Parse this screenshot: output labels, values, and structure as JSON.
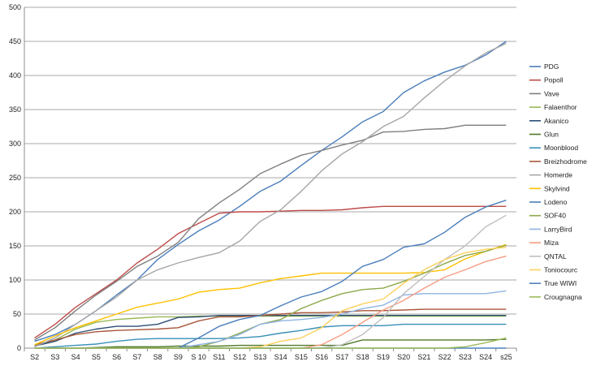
{
  "chart_data": {
    "type": "line",
    "title": "",
    "xlabel": "",
    "ylabel": "",
    "ylim": [
      0,
      500
    ],
    "yticks": [
      0,
      50,
      100,
      150,
      200,
      250,
      300,
      350,
      400,
      450,
      500
    ],
    "grid": "horizontal",
    "legend_position": "right",
    "categories": [
      "S2",
      "S3",
      "S4",
      "S5",
      "S6",
      "S7",
      "S8",
      "S9",
      "S 10",
      "S11",
      "S12",
      "S13",
      "S14",
      "S15",
      "S16",
      "S17",
      "S18",
      "S19",
      "S20",
      "S21",
      "S22",
      "S23",
      "S24",
      "s25"
    ],
    "series": [
      {
        "name": "PDG",
        "color": "#4a7ebb",
        "values": [
          10,
          20,
          35,
          55,
          78,
          100,
          130,
          152,
          172,
          188,
          208,
          230,
          245,
          268,
          290,
          310,
          332,
          347,
          375,
          392,
          405,
          415,
          430,
          450
        ]
      },
      {
        "name": "Popoll",
        "color": "#be4b48",
        "values": [
          15,
          35,
          60,
          80,
          100,
          125,
          145,
          168,
          183,
          198,
          200,
          200,
          201,
          202,
          202,
          203,
          206,
          208,
          208,
          208,
          208,
          208,
          208,
          208
        ]
      },
      {
        "name": "Vave",
        "color": "#7f7f7f",
        "values": [
          12,
          30,
          55,
          78,
          98,
          120,
          135,
          155,
          190,
          213,
          233,
          256,
          270,
          283,
          290,
          298,
          305,
          317,
          318,
          321,
          322,
          327,
          327,
          327
        ]
      },
      {
        "name": "Falaenthor",
        "color": "#98b954",
        "values": [
          3,
          12,
          28,
          38,
          42,
          44,
          46,
          46,
          47,
          47,
          47,
          47,
          47,
          47,
          47,
          47,
          47,
          47,
          47,
          47,
          47,
          47,
          47,
          47
        ]
      },
      {
        "name": "Akanico",
        "color": "#2c4d75",
        "values": [
          3,
          10,
          22,
          28,
          32,
          32,
          35,
          45,
          46,
          48,
          48,
          48,
          48,
          48,
          48,
          48,
          48,
          48,
          48,
          48,
          48,
          48,
          48,
          48
        ]
      },
      {
        "name": "Glun",
        "color": "#4f7a28",
        "values": [
          0,
          0,
          0,
          1,
          2,
          2,
          2,
          3,
          3,
          3,
          4,
          4,
          4,
          4,
          4,
          4,
          12,
          12,
          12,
          12,
          12,
          12,
          12,
          13
        ]
      },
      {
        "name": "Moonblood",
        "color": "#3a8fb7",
        "values": [
          0,
          2,
          4,
          6,
          10,
          13,
          14,
          14,
          14,
          14,
          15,
          17,
          22,
          26,
          31,
          33,
          33,
          33,
          35,
          35,
          35,
          35,
          35,
          35
        ]
      },
      {
        "name": "Breizhodrome",
        "color": "#a9573a",
        "values": [
          5,
          12,
          20,
          24,
          26,
          27,
          28,
          30,
          40,
          46,
          46,
          48,
          50,
          52,
          52,
          53,
          55,
          55,
          56,
          57,
          57,
          57,
          57,
          57
        ]
      },
      {
        "name": "Homerde",
        "color": "#a6a6a6",
        "values": [
          2,
          15,
          35,
          55,
          75,
          100,
          115,
          125,
          133,
          140,
          157,
          186,
          203,
          230,
          260,
          285,
          303,
          325,
          340,
          367,
          392,
          414,
          433,
          447
        ]
      },
      {
        "name": "Skylvind",
        "color": "#ffc000",
        "values": [
          5,
          18,
          30,
          40,
          50,
          60,
          66,
          72,
          82,
          86,
          88,
          96,
          102,
          106,
          110,
          110,
          110,
          110,
          110,
          111,
          115,
          131,
          142,
          152
        ]
      },
      {
        "name": "Lodeno",
        "color": "#4a7ebb",
        "values": [
          0,
          0,
          0,
          0,
          0,
          0,
          0,
          0,
          15,
          32,
          42,
          48,
          62,
          75,
          83,
          98,
          120,
          130,
          148,
          153,
          170,
          192,
          207,
          217
        ]
      },
      {
        "name": "SOF40",
        "color": "#8ea94a",
        "values": [
          0,
          0,
          0,
          0,
          0,
          0,
          0,
          0,
          2,
          10,
          22,
          35,
          42,
          58,
          70,
          80,
          86,
          88,
          98,
          110,
          124,
          136,
          142,
          151
        ]
      },
      {
        "name": "LarryBird",
        "color": "#8eb4e3",
        "values": [
          0,
          0,
          0,
          0,
          0,
          0,
          0,
          0,
          5,
          10,
          20,
          35,
          40,
          42,
          45,
          50,
          58,
          63,
          78,
          80,
          80,
          80,
          80,
          84
        ]
      },
      {
        "name": "Miza",
        "color": "#f79c82",
        "values": [
          0,
          0,
          0,
          0,
          0,
          0,
          0,
          0,
          0,
          0,
          0,
          0,
          0,
          0,
          5,
          20,
          38,
          56,
          70,
          88,
          104,
          115,
          127,
          135
        ]
      },
      {
        "name": "QNTAL",
        "color": "#bfbfbf",
        "values": [
          0,
          0,
          0,
          0,
          0,
          0,
          0,
          0,
          0,
          0,
          0,
          0,
          0,
          0,
          0,
          5,
          20,
          45,
          80,
          105,
          130,
          150,
          178,
          195
        ]
      },
      {
        "name": "Toniocourc",
        "color": "#fcd05a",
        "values": [
          0,
          0,
          0,
          0,
          0,
          0,
          0,
          0,
          0,
          0,
          0,
          2,
          10,
          15,
          30,
          55,
          65,
          72,
          95,
          115,
          130,
          140,
          145,
          148
        ]
      },
      {
        "name": "True WIWI",
        "color": "#4f81bd",
        "values": [
          0,
          0,
          0,
          0,
          0,
          0,
          0,
          0,
          0,
          0,
          0,
          0,
          0,
          0,
          0,
          0,
          0,
          0,
          0,
          0,
          0,
          0,
          0,
          0
        ]
      },
      {
        "name": "Crougnagna",
        "color": "#9bbb59",
        "values": [
          0,
          0,
          0,
          0,
          0,
          0,
          0,
          0,
          0,
          0,
          0,
          0,
          0,
          0,
          0,
          0,
          0,
          0,
          0,
          0,
          0,
          2,
          8,
          15
        ]
      }
    ]
  }
}
